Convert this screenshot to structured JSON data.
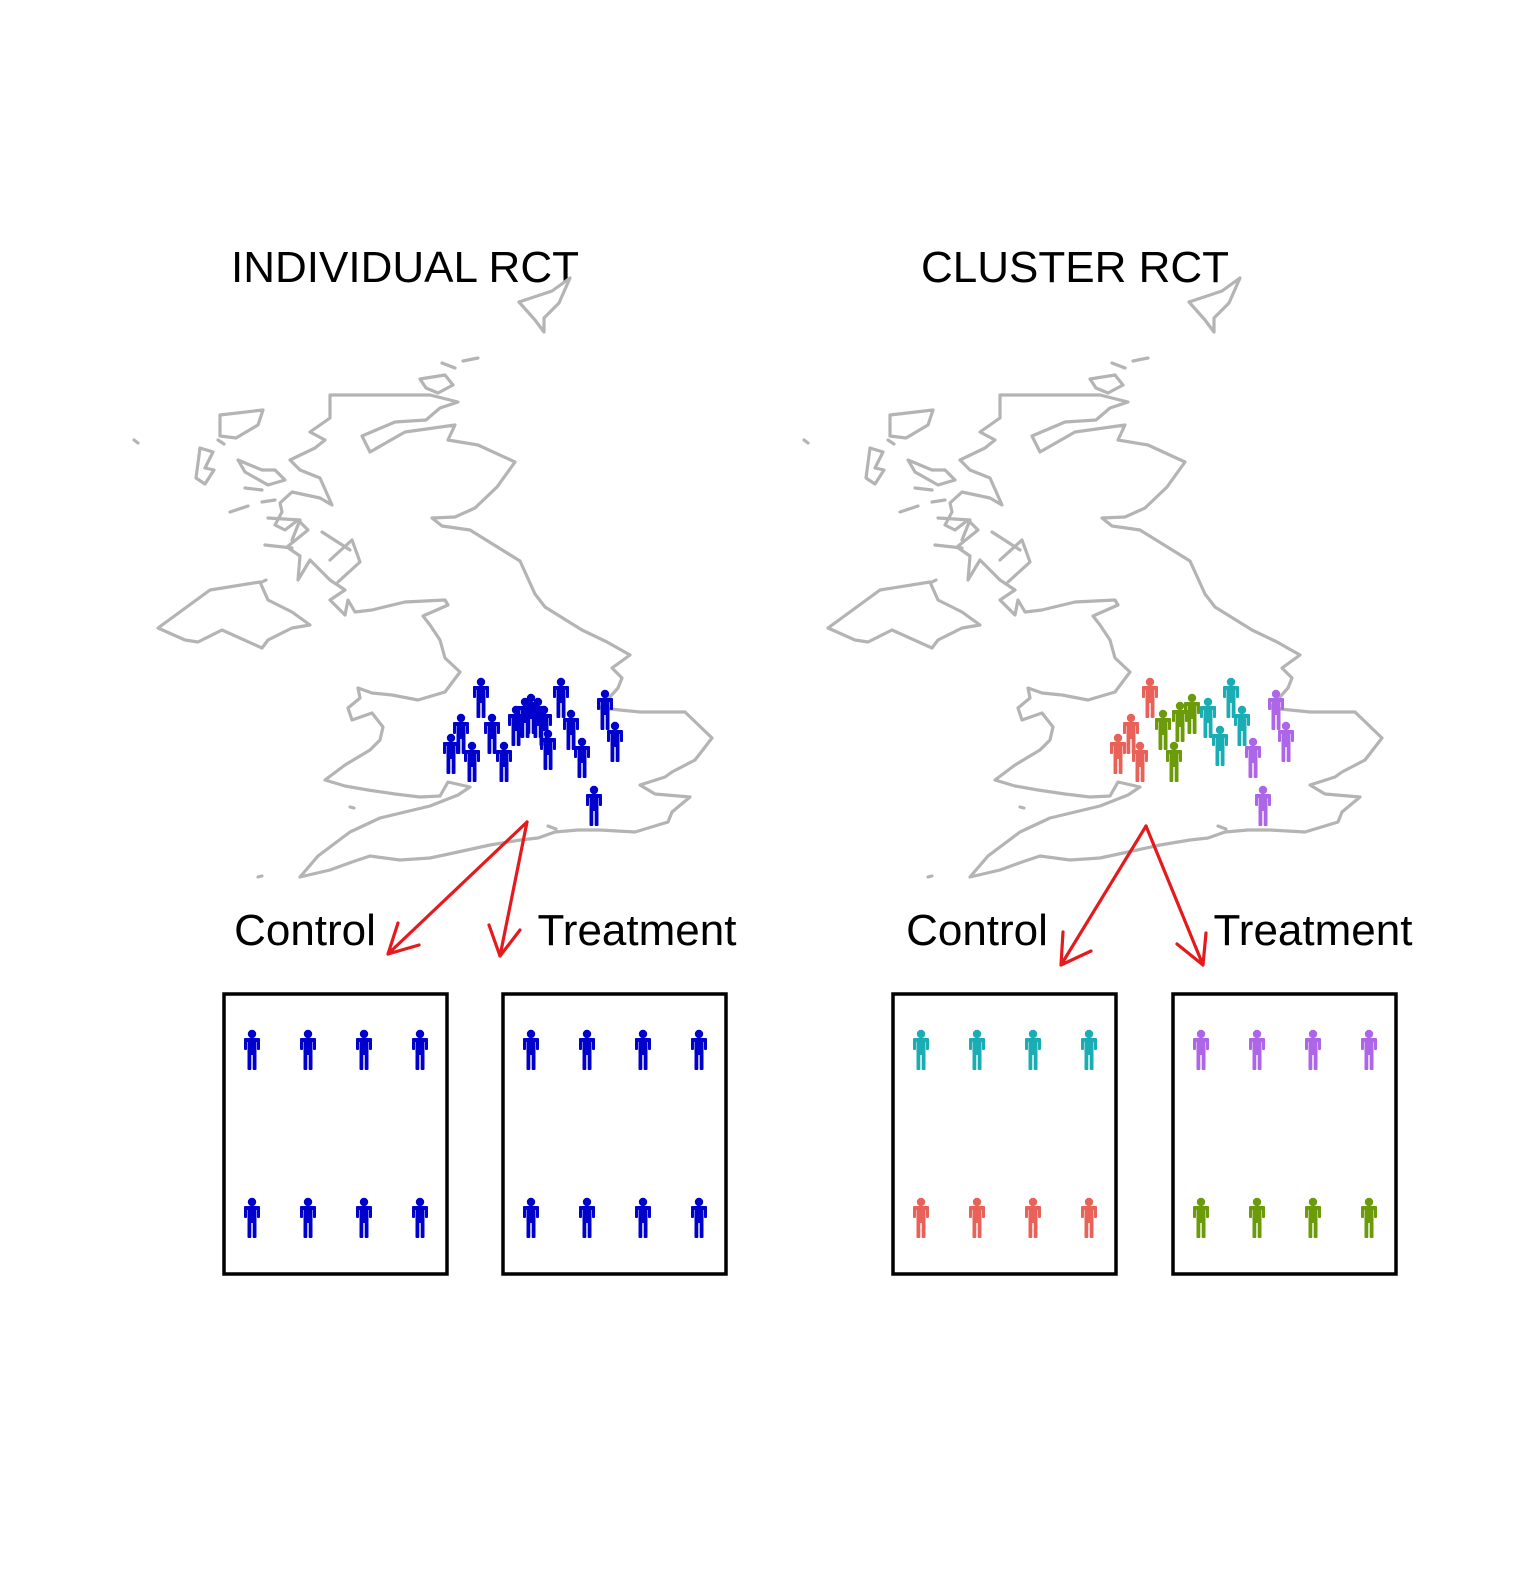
{
  "panels": [
    {
      "title": "INDIVIDUAL RCT",
      "control_label": "Control",
      "treatment_label": "Treatment",
      "map_people_colors": [
        "#0000CD"
      ],
      "control_colors": {
        "top": "#0000CD",
        "bottom": "#0000CD"
      },
      "treatment_colors": {
        "top": "#0000CD",
        "bottom": "#0000CD"
      }
    },
    {
      "title": "CLUSTER RCT",
      "control_label": "Control",
      "treatment_label": "Treatment",
      "map_people_colors": [
        "#E8625A",
        "#6B9A0A",
        "#1AADB3",
        "#AE66E8"
      ],
      "control_colors": {
        "top": "#1AADB3",
        "bottom": "#E8625A"
      },
      "treatment_colors": {
        "top": "#AE66E8",
        "bottom": "#6B9A0A"
      }
    }
  ],
  "colors": {
    "map_outline": "#B4B4B4",
    "arrow": "#E41A1C",
    "box": "#000000"
  },
  "icons": {
    "person": "person-icon",
    "map": "uk-map"
  }
}
